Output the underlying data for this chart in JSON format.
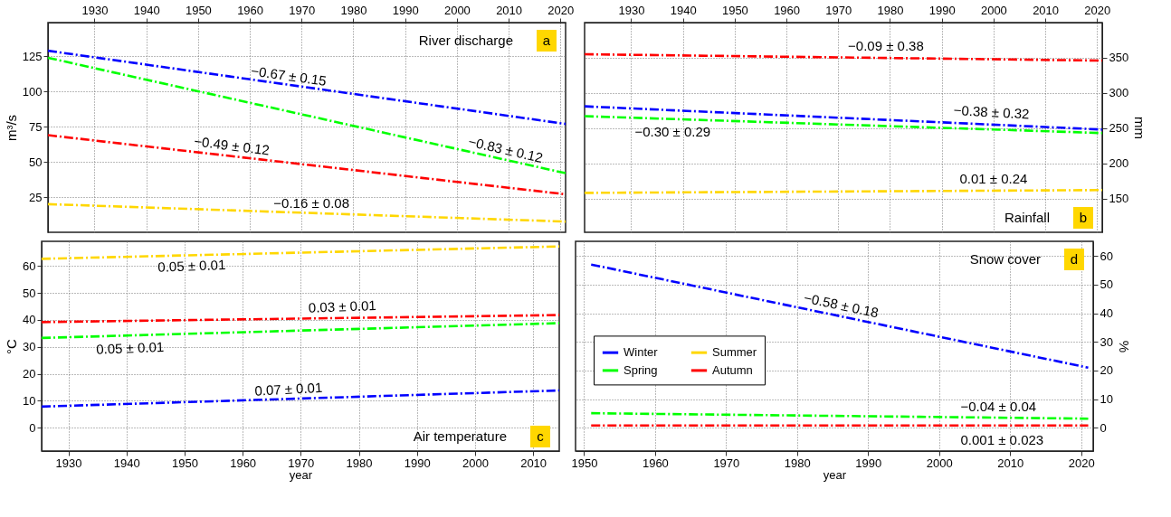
{
  "chart_data": [
    {
      "type": "line",
      "title": "River discharge",
      "ylabel": "m³/s",
      "xlim": [
        1921,
        2021
      ],
      "xticks": [
        1930,
        1940,
        1950,
        1960,
        1970,
        1980,
        1990,
        2000,
        2010,
        2020
      ],
      "ylim": [
        0,
        149
      ],
      "yticks": [
        25,
        50,
        75,
        100,
        125
      ],
      "grid": true,
      "legend": false,
      "line_style": "dashdot",
      "marker": "none",
      "x": [
        1921,
        2021
      ],
      "series": [
        {
          "color": "#0000ff",
          "values": [
            129,
            77
          ]
        },
        {
          "color": "#00ff00",
          "values": [
            124,
            42
          ]
        },
        {
          "color": "#ff0000",
          "values": [
            69,
            27
          ]
        },
        {
          "color": "#ffd700",
          "values": [
            20,
            7.6
          ]
        }
      ],
      "annotations": [
        "a",
        "−0.67 ± 0.15",
        "−0.83 ± 0.12",
        "−0.49 ± 0.12",
        "−0.16 ± 0.08"
      ]
    },
    {
      "type": "line",
      "title": "Rainfall",
      "y2label": "mm",
      "xlim": [
        1921,
        2021
      ],
      "xticks": [
        1930,
        1940,
        1950,
        1960,
        1970,
        1980,
        1990,
        2000,
        2010,
        2020
      ],
      "y2lim": [
        102,
        400
      ],
      "y2ticks": [
        150,
        200,
        250,
        300,
        350
      ],
      "grid": true,
      "legend": false,
      "line_style": "dashdot",
      "marker": "none",
      "x": [
        1921,
        2021
      ],
      "series": [
        {
          "color": "#0000ff",
          "axis": "y2",
          "values": [
            281,
            248
          ]
        },
        {
          "color": "#00ff00",
          "axis": "y2",
          "values": [
            267,
            243
          ]
        },
        {
          "color": "#ff0000",
          "axis": "y2",
          "values": [
            355,
            346
          ]
        },
        {
          "color": "#ffd700",
          "axis": "y2",
          "values": [
            158,
            162
          ]
        }
      ],
      "annotations": [
        "b",
        "−0.09 ± 0.38",
        "−0.38 ± 0.32",
        "−0.30 ± 0.29",
        "0.01 ± 0.24"
      ]
    },
    {
      "type": "line",
      "title": "Air temperature",
      "xlabel": "year",
      "ylabel": "°C",
      "xlim": [
        1925.4,
        2014.5
      ],
      "xticks": [
        1930,
        1940,
        1950,
        1960,
        1970,
        1980,
        1990,
        2000,
        2010
      ],
      "ylim": [
        -8.7,
        69.2
      ],
      "yticks": [
        0,
        10,
        20,
        30,
        40,
        50,
        60
      ],
      "grid": true,
      "legend": false,
      "line_style": "dashdot",
      "marker": "none",
      "x": [
        1925.4,
        2014.5
      ],
      "series": [
        {
          "color": "#0000ff",
          "values": [
            7.8,
            13.8
          ]
        },
        {
          "color": "#00ff00",
          "values": [
            33.3,
            38.8
          ]
        },
        {
          "color": "#ff0000",
          "values": [
            39.2,
            41.8
          ]
        },
        {
          "color": "#ffd700",
          "values": [
            62.7,
            67.3
          ]
        }
      ],
      "annotations": [
        "c",
        "0.05 ± 0.01",
        "0.03 ± 0.01",
        "0.05 ± 0.01",
        "0.07 ± 0.01"
      ]
    },
    {
      "type": "line",
      "title": "Snow cover",
      "xlabel": "year",
      "y2label": "%",
      "xlim": [
        1948.8,
        2021.7
      ],
      "xticks": [
        1950,
        1960,
        1970,
        1980,
        1990,
        2000,
        2010,
        2020
      ],
      "y2lim": [
        -8.1,
        65.1
      ],
      "y2ticks": [
        0,
        10,
        20,
        30,
        40,
        50,
        60
      ],
      "grid": true,
      "legend": "left",
      "line_style": "dashdot",
      "marker": "none",
      "x": [
        1951,
        2021
      ],
      "series": [
        {
          "name": "Winter",
          "color": "#0000ff",
          "axis": "y2",
          "values": [
            57,
            21
          ]
        },
        {
          "name": "Spring",
          "color": "#00ff00",
          "axis": "y2",
          "values": [
            5.1,
            3.2
          ]
        },
        {
          "name": "Summer",
          "color": "#ffd700",
          "axis": "y2",
          "values": [
            null,
            null
          ]
        },
        {
          "name": "Autumn",
          "color": "#ff0000",
          "axis": "y2",
          "values": [
            0.8,
            0.8
          ]
        }
      ],
      "annotations": [
        "d",
        "−0.58 ± 0.18",
        "−0.04 ± 0.04",
        "0.001 ± 0.023"
      ]
    }
  ]
}
